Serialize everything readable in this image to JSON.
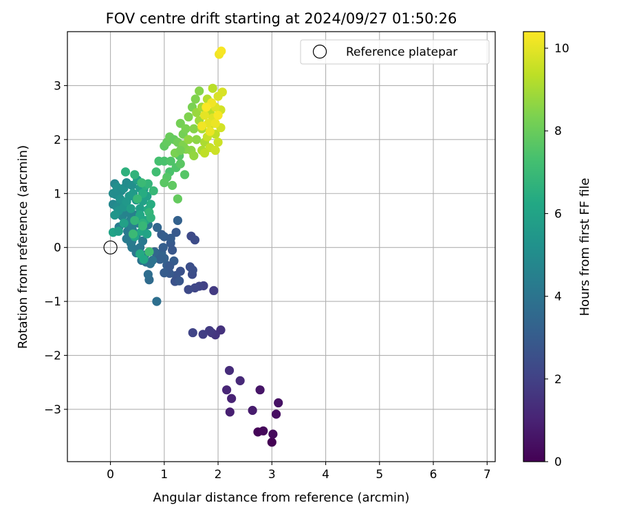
{
  "chart_data": {
    "type": "scatter",
    "title": "FOV centre drift starting at 2024/09/27 01:50:26",
    "xlabel": "Angular distance from reference (arcmin)",
    "ylabel": "Rotation from reference (arcmin)",
    "xlim": [
      -0.8,
      7.15
    ],
    "ylim": [
      -3.97,
      4.0
    ],
    "xticks": [
      0,
      1,
      2,
      3,
      4,
      5,
      6,
      7
    ],
    "yticks": [
      -3,
      -2,
      -1,
      0,
      1,
      2,
      3
    ],
    "xtick_labels": [
      "0",
      "1",
      "2",
      "3",
      "4",
      "5",
      "6",
      "7"
    ],
    "ytick_labels": [
      "−3",
      "−2",
      "−1",
      "0",
      "1",
      "2",
      "3"
    ],
    "grid": true,
    "legend": {
      "position": "top-right",
      "entries": [
        {
          "label": "Reference platepar",
          "marker": "open-circle",
          "x": 0,
          "y": 0
        }
      ]
    },
    "colorbar": {
      "label": "Hours from first FF file",
      "colormap": "viridis",
      "range": [
        0,
        10.4
      ],
      "ticks": [
        0,
        2,
        4,
        6,
        8,
        10
      ],
      "tick_labels": [
        "0",
        "2",
        "4",
        "6",
        "8",
        "10"
      ]
    },
    "points": [
      {
        "x": 3.0,
        "y": -3.61,
        "t": 0.0
      },
      {
        "x": 2.74,
        "y": -3.42,
        "t": 0.1
      },
      {
        "x": 2.84,
        "y": -3.4,
        "t": 0.2
      },
      {
        "x": 3.02,
        "y": -3.46,
        "t": 0.25
      },
      {
        "x": 3.08,
        "y": -3.09,
        "t": 0.4
      },
      {
        "x": 3.12,
        "y": -2.88,
        "t": 0.5
      },
      {
        "x": 2.78,
        "y": -2.64,
        "t": 0.6
      },
      {
        "x": 2.64,
        "y": -3.02,
        "t": 0.8
      },
      {
        "x": 2.22,
        "y": -3.05,
        "t": 0.9
      },
      {
        "x": 2.25,
        "y": -2.8,
        "t": 1.0
      },
      {
        "x": 2.16,
        "y": -2.64,
        "t": 1.1
      },
      {
        "x": 2.41,
        "y": -2.47,
        "t": 1.2
      },
      {
        "x": 2.21,
        "y": -2.28,
        "t": 1.3
      },
      {
        "x": 2.05,
        "y": -1.53,
        "t": 1.5
      },
      {
        "x": 1.95,
        "y": -1.62,
        "t": 1.6
      },
      {
        "x": 1.88,
        "y": -1.58,
        "t": 1.7
      },
      {
        "x": 1.84,
        "y": -1.54,
        "t": 1.8
      },
      {
        "x": 1.72,
        "y": -1.61,
        "t": 1.9
      },
      {
        "x": 1.53,
        "y": -1.58,
        "t": 2.1
      },
      {
        "x": 1.92,
        "y": -0.8,
        "t": 1.8
      },
      {
        "x": 1.73,
        "y": -0.71,
        "t": 2.0
      },
      {
        "x": 1.65,
        "y": -0.72,
        "t": 2.1
      },
      {
        "x": 1.57,
        "y": -0.75,
        "t": 2.2
      },
      {
        "x": 1.45,
        "y": -0.78,
        "t": 2.3
      },
      {
        "x": 1.52,
        "y": -0.5,
        "t": 2.4
      },
      {
        "x": 1.48,
        "y": -0.36,
        "t": 2.5
      },
      {
        "x": 1.53,
        "y": -0.42,
        "t": 2.5
      },
      {
        "x": 1.3,
        "y": -0.44,
        "t": 2.6
      },
      {
        "x": 1.22,
        "y": -0.52,
        "t": 2.7
      },
      {
        "x": 1.2,
        "y": -0.63,
        "t": 2.6
      },
      {
        "x": 1.28,
        "y": -0.62,
        "t": 2.8
      },
      {
        "x": 1.1,
        "y": -0.48,
        "t": 2.9
      },
      {
        "x": 1.0,
        "y": -0.47,
        "t": 3.0
      },
      {
        "x": 1.05,
        "y": -0.33,
        "t": 3.1
      },
      {
        "x": 1.18,
        "y": -0.25,
        "t": 3.0
      },
      {
        "x": 1.0,
        "y": -0.2,
        "t": 3.2
      },
      {
        "x": 0.95,
        "y": -0.1,
        "t": 3.3
      },
      {
        "x": 0.88,
        "y": -0.15,
        "t": 3.3
      },
      {
        "x": 1.12,
        "y": 0.08,
        "t": 2.9
      },
      {
        "x": 1.15,
        "y": -0.05,
        "t": 2.8
      },
      {
        "x": 1.1,
        "y": -0.35,
        "t": 2.9
      },
      {
        "x": 0.98,
        "y": 0.0,
        "t": 3.1
      },
      {
        "x": 0.82,
        "y": -0.08,
        "t": 3.4
      },
      {
        "x": 1.22,
        "y": 0.28,
        "t": 2.9
      },
      {
        "x": 0.95,
        "y": 0.24,
        "t": 3.0
      },
      {
        "x": 1.0,
        "y": 0.2,
        "t": 3.1
      },
      {
        "x": 1.12,
        "y": 0.17,
        "t": 3.0
      },
      {
        "x": 1.5,
        "y": 0.21,
        "t": 2.3
      },
      {
        "x": 1.57,
        "y": 0.14,
        "t": 2.4
      },
      {
        "x": 1.25,
        "y": 0.5,
        "t": 3.2
      },
      {
        "x": 0.87,
        "y": 0.37,
        "t": 3.4
      },
      {
        "x": 0.92,
        "y": -0.22,
        "t": 3.2
      },
      {
        "x": 0.72,
        "y": -0.6,
        "t": 3.6
      },
      {
        "x": 0.7,
        "y": -0.5,
        "t": 3.7
      },
      {
        "x": 0.86,
        "y": -1.0,
        "t": 3.8
      },
      {
        "x": 0.66,
        "y": -0.27,
        "t": 3.9
      },
      {
        "x": 0.78,
        "y": -0.24,
        "t": 4.0
      },
      {
        "x": 0.74,
        "y": -0.3,
        "t": 3.9
      },
      {
        "x": 0.58,
        "y": -0.24,
        "t": 4.0
      },
      {
        "x": 0.64,
        "y": -0.14,
        "t": 4.0
      },
      {
        "x": 0.48,
        "y": -0.1,
        "t": 4.1
      },
      {
        "x": 0.4,
        "y": 0.0,
        "t": 4.2
      },
      {
        "x": 0.38,
        "y": 0.08,
        "t": 4.2
      },
      {
        "x": 0.55,
        "y": 0.0,
        "t": 4.1
      },
      {
        "x": 0.6,
        "y": 0.12,
        "t": 4.2
      },
      {
        "x": 0.4,
        "y": 0.12,
        "t": 4.3
      },
      {
        "x": 0.42,
        "y": 0.3,
        "t": 4.4
      },
      {
        "x": 0.3,
        "y": 0.16,
        "t": 4.3
      },
      {
        "x": 0.32,
        "y": 0.3,
        "t": 4.2
      },
      {
        "x": 0.48,
        "y": 0.22,
        "t": 4.4
      },
      {
        "x": 0.28,
        "y": 0.45,
        "t": 4.5
      },
      {
        "x": 0.38,
        "y": 0.52,
        "t": 4.6
      },
      {
        "x": 0.22,
        "y": 0.58,
        "t": 4.7
      },
      {
        "x": 0.3,
        "y": 0.65,
        "t": 4.6
      },
      {
        "x": 0.45,
        "y": 0.6,
        "t": 4.5
      },
      {
        "x": 0.16,
        "y": 0.38,
        "t": 4.4
      },
      {
        "x": 0.4,
        "y": 0.38,
        "t": 4.5
      },
      {
        "x": 0.52,
        "y": 0.45,
        "t": 4.4
      },
      {
        "x": 0.62,
        "y": 0.36,
        "t": 4.3
      },
      {
        "x": 0.7,
        "y": 0.42,
        "t": 4.2
      },
      {
        "x": 0.05,
        "y": 0.8,
        "t": 4.8
      },
      {
        "x": 0.1,
        "y": 0.98,
        "t": 4.9
      },
      {
        "x": 0.05,
        "y": 1.0,
        "t": 5.0
      },
      {
        "x": 0.08,
        "y": 1.18,
        "t": 4.8
      },
      {
        "x": 0.12,
        "y": 1.12,
        "t": 5.1
      },
      {
        "x": 0.2,
        "y": 1.05,
        "t": 5.0
      },
      {
        "x": 0.25,
        "y": 1.1,
        "t": 5.2
      },
      {
        "x": 0.3,
        "y": 1.2,
        "t": 5.0
      },
      {
        "x": 0.4,
        "y": 1.15,
        "t": 5.1
      },
      {
        "x": 0.18,
        "y": 0.9,
        "t": 5.2
      },
      {
        "x": 0.22,
        "y": 0.85,
        "t": 5.3
      },
      {
        "x": 0.12,
        "y": 0.75,
        "t": 5.0
      },
      {
        "x": 0.15,
        "y": 0.68,
        "t": 5.3
      },
      {
        "x": 0.08,
        "y": 0.6,
        "t": 5.4
      },
      {
        "x": 0.25,
        "y": 0.75,
        "t": 5.4
      },
      {
        "x": 0.35,
        "y": 0.95,
        "t": 5.5
      },
      {
        "x": 0.3,
        "y": 0.85,
        "t": 5.5
      },
      {
        "x": 0.42,
        "y": 1.0,
        "t": 5.6
      },
      {
        "x": 0.48,
        "y": 0.88,
        "t": 5.4
      },
      {
        "x": 0.55,
        "y": 1.1,
        "t": 5.6
      },
      {
        "x": 0.5,
        "y": 1.25,
        "t": 5.7
      },
      {
        "x": 0.62,
        "y": 1.08,
        "t": 5.7
      },
      {
        "x": 0.38,
        "y": 0.72,
        "t": 5.8
      },
      {
        "x": 0.55,
        "y": 0.72,
        "t": 5.8
      },
      {
        "x": 0.6,
        "y": 0.86,
        "t": 5.9
      },
      {
        "x": 0.68,
        "y": 0.95,
        "t": 5.9
      },
      {
        "x": 0.05,
        "y": 0.28,
        "t": 6.0
      },
      {
        "x": 0.15,
        "y": 0.3,
        "t": 5.8
      },
      {
        "x": 0.25,
        "y": 0.45,
        "t": 5.9
      },
      {
        "x": 0.65,
        "y": 0.5,
        "t": 6.1
      },
      {
        "x": 0.58,
        "y": 0.3,
        "t": 6.2
      },
      {
        "x": 0.45,
        "y": 0.2,
        "t": 6.1
      },
      {
        "x": 0.68,
        "y": 0.25,
        "t": 6.0
      },
      {
        "x": 0.55,
        "y": -0.12,
        "t": 6.3
      },
      {
        "x": 0.62,
        "y": -0.22,
        "t": 6.2
      },
      {
        "x": 0.55,
        "y": 0.6,
        "t": 6.2
      },
      {
        "x": 0.7,
        "y": 0.7,
        "t": 6.3
      },
      {
        "x": 0.75,
        "y": 0.8,
        "t": 6.4
      },
      {
        "x": 0.6,
        "y": 1.0,
        "t": 6.4
      },
      {
        "x": 0.65,
        "y": 1.15,
        "t": 6.5
      },
      {
        "x": 0.28,
        "y": 1.4,
        "t": 6.6
      },
      {
        "x": 0.45,
        "y": 1.35,
        "t": 6.7
      },
      {
        "x": 0.7,
        "y": 1.18,
        "t": 6.8
      },
      {
        "x": 0.8,
        "y": 1.05,
        "t": 6.9
      },
      {
        "x": 0.72,
        "y": 0.65,
        "t": 6.8
      },
      {
        "x": 0.75,
        "y": 0.55,
        "t": 6.7
      },
      {
        "x": 0.42,
        "y": 0.25,
        "t": 7.0
      },
      {
        "x": 0.72,
        "y": -0.08,
        "t": 7.2
      },
      {
        "x": 0.5,
        "y": 0.9,
        "t": 6.9
      },
      {
        "x": 0.45,
        "y": 0.5,
        "t": 6.8
      },
      {
        "x": 0.6,
        "y": 0.45,
        "t": 6.6
      },
      {
        "x": 0.58,
        "y": 1.2,
        "t": 7.0
      },
      {
        "x": 0.6,
        "y": 0.4,
        "t": 6.9
      },
      {
        "x": 0.85,
        "y": 1.4,
        "t": 7.2
      },
      {
        "x": 0.9,
        "y": 1.6,
        "t": 7.3
      },
      {
        "x": 1.0,
        "y": 1.6,
        "t": 7.4
      },
      {
        "x": 1.1,
        "y": 1.4,
        "t": 7.4
      },
      {
        "x": 1.12,
        "y": 1.6,
        "t": 7.5
      },
      {
        "x": 1.05,
        "y": 1.3,
        "t": 7.6
      },
      {
        "x": 1.0,
        "y": 1.2,
        "t": 7.7
      },
      {
        "x": 1.15,
        "y": 1.15,
        "t": 7.8
      },
      {
        "x": 1.22,
        "y": 1.48,
        "t": 7.5
      },
      {
        "x": 1.28,
        "y": 1.7,
        "t": 7.6
      },
      {
        "x": 1.3,
        "y": 1.55,
        "t": 7.7
      },
      {
        "x": 1.38,
        "y": 1.35,
        "t": 7.6
      },
      {
        "x": 1.25,
        "y": 0.9,
        "t": 7.9
      },
      {
        "x": 1.0,
        "y": 1.88,
        "t": 7.8
      },
      {
        "x": 1.05,
        "y": 1.95,
        "t": 7.9
      },
      {
        "x": 1.1,
        "y": 2.05,
        "t": 8.0
      },
      {
        "x": 1.18,
        "y": 2.0,
        "t": 7.9
      },
      {
        "x": 1.25,
        "y": 1.95,
        "t": 8.1
      },
      {
        "x": 1.35,
        "y": 2.1,
        "t": 8.2
      },
      {
        "x": 1.3,
        "y": 2.3,
        "t": 8.2
      },
      {
        "x": 1.4,
        "y": 2.2,
        "t": 8.3
      },
      {
        "x": 1.45,
        "y": 2.42,
        "t": 8.4
      },
      {
        "x": 1.52,
        "y": 2.6,
        "t": 8.3
      },
      {
        "x": 1.58,
        "y": 2.75,
        "t": 8.4
      },
      {
        "x": 1.65,
        "y": 2.9,
        "t": 8.5
      },
      {
        "x": 1.55,
        "y": 2.2,
        "t": 8.5
      },
      {
        "x": 1.6,
        "y": 2.0,
        "t": 8.6
      },
      {
        "x": 1.5,
        "y": 1.8,
        "t": 8.6
      },
      {
        "x": 1.4,
        "y": 1.82,
        "t": 8.5
      },
      {
        "x": 1.35,
        "y": 1.9,
        "t": 8.4
      },
      {
        "x": 1.2,
        "y": 1.75,
        "t": 8.3
      },
      {
        "x": 1.3,
        "y": 1.8,
        "t": 8.2
      },
      {
        "x": 1.45,
        "y": 2.0,
        "t": 8.7
      },
      {
        "x": 1.55,
        "y": 1.7,
        "t": 8.7
      },
      {
        "x": 1.6,
        "y": 2.5,
        "t": 8.8
      },
      {
        "x": 1.65,
        "y": 2.35,
        "t": 8.9
      },
      {
        "x": 1.7,
        "y": 2.2,
        "t": 9.0
      },
      {
        "x": 1.7,
        "y": 2.6,
        "t": 9.0
      },
      {
        "x": 1.75,
        "y": 1.95,
        "t": 9.1
      },
      {
        "x": 1.7,
        "y": 1.8,
        "t": 9.1
      },
      {
        "x": 1.8,
        "y": 2.75,
        "t": 9.2
      },
      {
        "x": 1.85,
        "y": 2.5,
        "t": 9.3
      },
      {
        "x": 1.9,
        "y": 2.95,
        "t": 9.3
      },
      {
        "x": 1.9,
        "y": 2.3,
        "t": 9.4
      },
      {
        "x": 1.95,
        "y": 2.1,
        "t": 9.4
      },
      {
        "x": 1.8,
        "y": 2.05,
        "t": 9.5
      },
      {
        "x": 1.85,
        "y": 1.85,
        "t": 9.5
      },
      {
        "x": 1.75,
        "y": 1.75,
        "t": 9.4
      },
      {
        "x": 1.95,
        "y": 1.8,
        "t": 9.6
      },
      {
        "x": 2.0,
        "y": 1.95,
        "t": 9.6
      },
      {
        "x": 2.05,
        "y": 2.22,
        "t": 9.7
      },
      {
        "x": 2.05,
        "y": 2.55,
        "t": 9.7
      },
      {
        "x": 2.0,
        "y": 2.8,
        "t": 9.8
      },
      {
        "x": 2.08,
        "y": 2.88,
        "t": 9.8
      },
      {
        "x": 1.95,
        "y": 2.6,
        "t": 9.9
      },
      {
        "x": 1.9,
        "y": 2.4,
        "t": 9.9
      },
      {
        "x": 1.82,
        "y": 2.3,
        "t": 10.0
      },
      {
        "x": 1.75,
        "y": 2.45,
        "t": 10.0
      },
      {
        "x": 1.85,
        "y": 2.15,
        "t": 10.1
      },
      {
        "x": 1.95,
        "y": 2.3,
        "t": 10.1
      },
      {
        "x": 2.02,
        "y": 3.58,
        "t": 10.2
      },
      {
        "x": 2.06,
        "y": 3.64,
        "t": 10.3
      },
      {
        "x": 1.7,
        "y": 2.25,
        "t": 10.2
      },
      {
        "x": 1.88,
        "y": 2.68,
        "t": 10.2
      },
      {
        "x": 2.0,
        "y": 2.45,
        "t": 10.3
      },
      {
        "x": 1.78,
        "y": 2.6,
        "t": 10.35
      }
    ]
  }
}
